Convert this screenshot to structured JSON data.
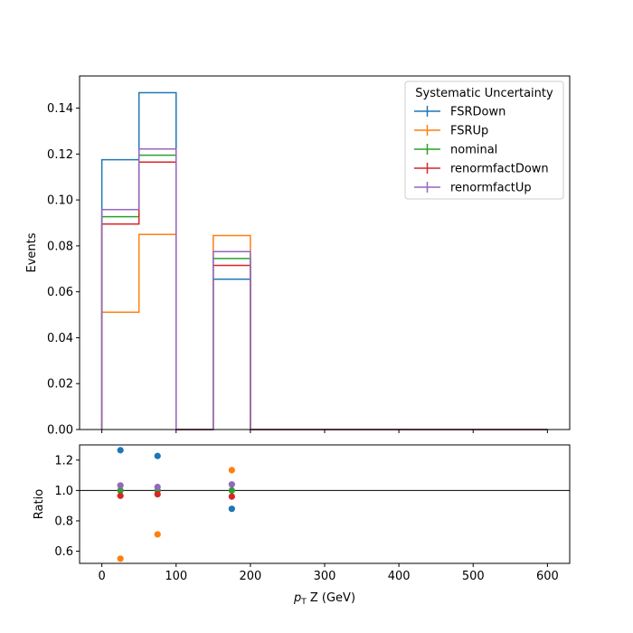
{
  "chart_data": {
    "type": "step",
    "main": {
      "ylabel": "Events",
      "ylim": [
        0,
        0.154
      ],
      "yticks": [
        "0.00",
        "0.02",
        "0.04",
        "0.06",
        "0.08",
        "0.10",
        "0.12",
        "0.14"
      ],
      "bin_edges": [
        0,
        50,
        100,
        150,
        200,
        250,
        300,
        350,
        400,
        450,
        500,
        550,
        600
      ],
      "series": [
        {
          "name": "FSRDown",
          "color": "#1f77b4",
          "values": [
            0.1175,
            0.1467,
            0,
            0.0655,
            0,
            0,
            0,
            0,
            0,
            0,
            0,
            0
          ]
        },
        {
          "name": "FSRUp",
          "color": "#ff7f0e",
          "values": [
            0.0511,
            0.085,
            0,
            0.0845,
            0,
            0,
            0,
            0,
            0,
            0,
            0,
            0
          ]
        },
        {
          "name": "nominal",
          "color": "#2ca02c",
          "values": [
            0.0927,
            0.1195,
            0,
            0.0745,
            0,
            0,
            0,
            0,
            0,
            0,
            0,
            0
          ]
        },
        {
          "name": "renormfactDown",
          "color": "#d62728",
          "values": [
            0.0895,
            0.1165,
            0,
            0.0715,
            0,
            0,
            0,
            0,
            0,
            0,
            0,
            0
          ]
        },
        {
          "name": "renormfactUp",
          "color": "#9467bd",
          "values": [
            0.0958,
            0.1222,
            0,
            0.0775,
            0,
            0,
            0,
            0,
            0,
            0,
            0,
            0
          ]
        }
      ]
    },
    "ratio": {
      "ylabel": "Ratio",
      "ylim": [
        0.52,
        1.3
      ],
      "yticks": [
        "0.6",
        "0.8",
        "1.0",
        "1.2"
      ],
      "reference_line": 1.0,
      "x": [
        25,
        75,
        175
      ],
      "series": [
        {
          "name": "FSRDown",
          "color": "#1f77b4",
          "values": [
            1.265,
            1.227,
            0.879
          ]
        },
        {
          "name": "FSRUp",
          "color": "#ff7f0e",
          "values": [
            0.551,
            0.711,
            1.134
          ]
        },
        {
          "name": "nominal",
          "color": "#2ca02c",
          "values": [
            1.0,
            1.0,
            1.0
          ]
        },
        {
          "name": "renormfactDown",
          "color": "#d62728",
          "values": [
            0.965,
            0.975,
            0.96
          ]
        },
        {
          "name": "renormfactUp",
          "color": "#9467bd",
          "values": [
            1.033,
            1.023,
            1.04
          ]
        }
      ]
    },
    "xlabel_italic": "p",
    "xlabel_sub": "T",
    "xlabel_rest": " Z (GeV)",
    "xlim": [
      -30,
      630
    ],
    "xticks": [
      "0",
      "100",
      "200",
      "300",
      "400",
      "500",
      "600"
    ],
    "legend": {
      "title": "Systematic Uncertainty",
      "placement": "top-right"
    }
  }
}
